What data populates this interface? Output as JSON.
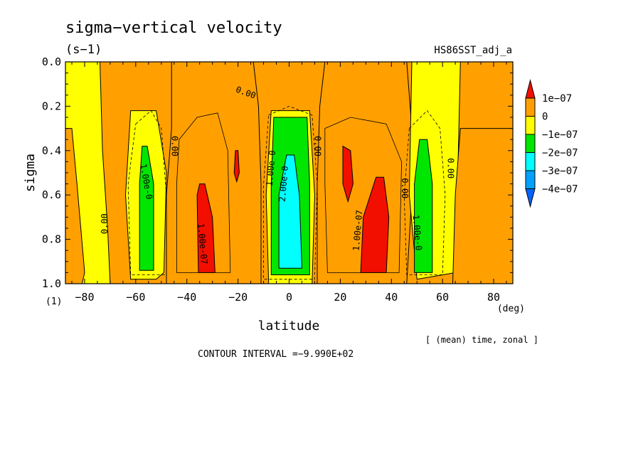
{
  "chart_data": {
    "type": "heatmap",
    "title": "sigma−vertical velocity",
    "units": "(s−1)",
    "dataset": "HS86SST_adj_a",
    "xlabel": "latitude",
    "x_units": "(deg)",
    "ylabel": "sigma",
    "y_units": "(1)",
    "xlim": [
      -87.5,
      87.5
    ],
    "ylim": [
      0.0,
      1.0
    ],
    "y_inverted": true,
    "x_ticks": [
      -80,
      -60,
      -40,
      -20,
      0,
      20,
      40,
      60,
      80
    ],
    "x_tick_labels": [
      "−80",
      "−60",
      "−40",
      "−20",
      "0",
      "20",
      "40",
      "60",
      "80"
    ],
    "y_ticks": [
      0.0,
      0.2,
      0.4,
      0.6,
      0.8,
      1.0
    ],
    "y_tick_labels": [
      "0.0",
      "0.2",
      "0.4",
      "0.6",
      "0.8",
      "1.0"
    ],
    "averaging_note": "[ (mean) time, zonal ]",
    "contour_interval_text": "CONTOUR INTERVAL =−9.990E+02",
    "colorbar": {
      "labels": [
        "1e−07",
        "0",
        "−1e−07",
        "−2e−07",
        "−3e−07",
        "−4e−07"
      ],
      "bins": [
        {
          "range": "> 1e-07",
          "color": "#f20f00"
        },
        {
          "range": "0 to 1e-07",
          "color": "#ffa000"
        },
        {
          "range": "-1e-07 to 0",
          "color": "#ffff00"
        },
        {
          "range": "-2e-07 to -1e-07",
          "color": "#00e600"
        },
        {
          "range": "-3e-07 to -2e-07",
          "color": "#00ffff"
        },
        {
          "range": "-4e-07 to -3e-07",
          "color": "#00a0ff"
        },
        {
          "range": "< -4e-07",
          "color": "#0064ff"
        }
      ]
    },
    "regions": [
      {
        "name": "sh-polar-descent",
        "level": "-1e-07 to 0",
        "color": "#ffff00",
        "polygon": [
          [
            -87.5,
            0.0
          ],
          [
            -74,
            0.0
          ],
          [
            -73,
            0.4
          ],
          [
            -71,
            0.75
          ],
          [
            -70,
            1.0
          ],
          [
            -87.5,
            1.0
          ]
        ]
      },
      {
        "name": "sh-polar-cap",
        "level": "0 to 1e-07",
        "color": "#ffa000",
        "polygon": [
          [
            -87.5,
            0.3
          ],
          [
            -85,
            0.3
          ],
          [
            -83,
            0.55
          ],
          [
            -80,
            0.95
          ],
          [
            -81,
            1.0
          ],
          [
            -87.5,
            1.0
          ]
        ]
      },
      {
        "name": "sh-midlat-ascent",
        "level": "0 to 1e-07",
        "color": "#ffa000",
        "polygon": [
          [
            -46,
            0.0
          ],
          [
            -14,
            0.0
          ],
          [
            -12,
            0.2
          ],
          [
            -11,
            0.55
          ],
          [
            -11,
            1.0
          ],
          [
            -48,
            1.0
          ],
          [
            -48,
            0.6
          ],
          [
            -46,
            0.3
          ]
        ]
      },
      {
        "name": "sh-subtropical-descent",
        "level": "-1e-07 to 0",
        "color": "#ffff00",
        "polygon": [
          [
            -62,
            0.22
          ],
          [
            -52,
            0.22
          ],
          [
            -48,
            0.5
          ],
          [
            -49,
            0.95
          ],
          [
            -52,
            0.98
          ],
          [
            -62,
            0.98
          ],
          [
            -64,
            0.6
          ]
        ]
      },
      {
        "name": "sh-descent-core",
        "level": "-2e-07 to -1e-07",
        "color": "#00e600",
        "polygon": [
          [
            -57.5,
            0.38
          ],
          [
            -55.5,
            0.38
          ],
          [
            -53,
            0.55
          ],
          [
            -53,
            0.94
          ],
          [
            -58.5,
            0.94
          ],
          [
            -58.5,
            0.55
          ]
        ]
      },
      {
        "name": "sh-ascent-core",
        "level": "> 1e-07",
        "color": "#f20f00",
        "polygon": [
          [
            -35,
            0.55
          ],
          [
            -33,
            0.55
          ],
          [
            -30,
            0.7
          ],
          [
            -29,
            0.95
          ],
          [
            -35.5,
            0.95
          ],
          [
            -36,
            0.6
          ]
        ]
      },
      {
        "name": "sh-upper-ascent",
        "level": "> 1e-07",
        "color": "#f20f00",
        "polygon": [
          [
            -21,
            0.4
          ],
          [
            -20,
            0.4
          ],
          [
            -19.5,
            0.5
          ],
          [
            -20.5,
            0.54
          ],
          [
            -21.5,
            0.5
          ]
        ]
      },
      {
        "name": "equatorial-descent",
        "level": "-1e-07 to 0",
        "color": "#ffff00",
        "polygon": [
          [
            -7,
            0.22
          ],
          [
            8,
            0.22
          ],
          [
            10,
            0.6
          ],
          [
            9,
            1.0
          ],
          [
            -8,
            1.0
          ],
          [
            -9,
            0.6
          ]
        ]
      },
      {
        "name": "equatorial-descent-mid",
        "level": "-2e-07 to -1e-07",
        "color": "#00e600",
        "polygon": [
          [
            -6,
            0.25
          ],
          [
            7,
            0.25
          ],
          [
            8,
            0.55
          ],
          [
            8,
            0.96
          ],
          [
            -7,
            0.96
          ],
          [
            -7,
            0.55
          ]
        ]
      },
      {
        "name": "equatorial-descent-core",
        "level": "-3e-07 to -2e-07",
        "color": "#00ffff",
        "polygon": [
          [
            -1,
            0.42
          ],
          [
            2,
            0.42
          ],
          [
            4,
            0.6
          ],
          [
            5,
            0.93
          ],
          [
            -4,
            0.93
          ],
          [
            -4,
            0.6
          ]
        ]
      },
      {
        "name": "nh-midlat-ascent",
        "level": "0 to 1e-07",
        "color": "#ffa000",
        "polygon": [
          [
            14,
            0.0
          ],
          [
            46,
            0.0
          ],
          [
            48,
            0.3
          ],
          [
            48,
            0.6
          ],
          [
            46,
            1.0
          ],
          [
            11,
            1.0
          ],
          [
            11,
            0.55
          ],
          [
            12,
            0.2
          ]
        ]
      },
      {
        "name": "nh-ascent-core",
        "level": "> 1e-07",
        "color": "#f20f00",
        "polygon": [
          [
            34,
            0.52
          ],
          [
            37,
            0.52
          ],
          [
            39,
            0.7
          ],
          [
            38,
            0.95
          ],
          [
            28,
            0.95
          ],
          [
            29,
            0.7
          ]
        ]
      },
      {
        "name": "nh-upper-ascent",
        "level": "> 1e-07",
        "color": "#f20f00",
        "polygon": [
          [
            21,
            0.38
          ],
          [
            24,
            0.4
          ],
          [
            25,
            0.55
          ],
          [
            23,
            0.63
          ],
          [
            21,
            0.55
          ]
        ]
      },
      {
        "name": "nh-subtropical-descent",
        "level": "-1e-07 to 0",
        "color": "#ffff00",
        "polygon": [
          [
            48,
            0.0
          ],
          [
            67,
            0.0
          ],
          [
            66,
            0.5
          ],
          [
            65,
            0.95
          ],
          [
            50,
            0.98
          ],
          [
            47,
            0.6
          ]
        ]
      },
      {
        "name": "nh-descent-core",
        "level": "-2e-07 to -1e-07",
        "color": "#00e600",
        "polygon": [
          [
            51,
            0.35
          ],
          [
            54,
            0.35
          ],
          [
            56,
            0.55
          ],
          [
            56,
            0.95
          ],
          [
            49,
            0.95
          ],
          [
            49,
            0.55
          ]
        ]
      },
      {
        "name": "nh-polar-ascent",
        "level": "0 to 1e-07",
        "color": "#ffa000",
        "polygon": [
          [
            67,
            0.3
          ],
          [
            87.5,
            0.3
          ],
          [
            87.5,
            1.0
          ],
          [
            64,
            1.0
          ],
          [
            65,
            0.6
          ]
        ]
      }
    ],
    "contour_labels": [
      {
        "text": "0.00",
        "x": -17,
        "y": 0.14,
        "angle": 20
      },
      {
        "text": "0.00",
        "x": -45,
        "y": 0.38,
        "angle": 90
      },
      {
        "text": "1.00e-0",
        "x": -56,
        "y": 0.54,
        "angle": 80
      },
      {
        "text": "0.00",
        "x": -72,
        "y": 0.73,
        "angle": -90
      },
      {
        "text": "1.00e-07",
        "x": -34,
        "y": 0.82,
        "angle": 85
      },
      {
        "text": "1.00e-0",
        "x": -7,
        "y": 0.48,
        "angle": -85
      },
      {
        "text": "2.00e-0",
        "x": -2,
        "y": 0.55,
        "angle": -85
      },
      {
        "text": "0.00",
        "x": 11,
        "y": 0.38,
        "angle": 90
      },
      {
        "text": "1.00e-07",
        "x": 27,
        "y": 0.76,
        "angle": -85
      },
      {
        "text": "0.00",
        "x": 45,
        "y": 0.57,
        "angle": 90
      },
      {
        "text": "1.00e-0",
        "x": 50,
        "y": 0.77,
        "angle": 85
      },
      {
        "text": "0.00",
        "x": 63,
        "y": 0.48,
        "angle": 90
      }
    ],
    "contour_lines": [
      {
        "style": "dashed",
        "points": [
          [
            -60,
            0.28
          ],
          [
            -54,
            0.22
          ],
          [
            -50,
            0.3
          ],
          [
            -48,
            0.6
          ],
          [
            -48,
            0.96
          ],
          [
            -62,
            0.96
          ],
          [
            -63,
            0.55
          ],
          [
            -60,
            0.28
          ]
        ]
      },
      {
        "style": "dashed",
        "points": [
          [
            -8,
            0.24
          ],
          [
            0,
            0.2
          ],
          [
            9,
            0.24
          ],
          [
            11,
            0.55
          ],
          [
            10,
            0.98
          ],
          [
            -10,
            0.98
          ],
          [
            -10,
            0.55
          ],
          [
            -8,
            0.24
          ]
        ]
      },
      {
        "style": "dashed",
        "points": [
          [
            47,
            0.3
          ],
          [
            54,
            0.22
          ],
          [
            59,
            0.3
          ],
          [
            61,
            0.6
          ],
          [
            60,
            0.96
          ],
          [
            46,
            0.96
          ],
          [
            45,
            0.6
          ],
          [
            47,
            0.3
          ]
        ]
      },
      {
        "style": "solid",
        "points": [
          [
            -43,
            0.35
          ],
          [
            -36,
            0.25
          ],
          [
            -28,
            0.23
          ],
          [
            -24,
            0.4
          ],
          [
            -23,
            0.95
          ],
          [
            -44,
            0.95
          ],
          [
            -44,
            0.55
          ],
          [
            -43,
            0.35
          ]
        ]
      },
      {
        "style": "solid",
        "points": [
          [
            14,
            0.3
          ],
          [
            24,
            0.25
          ],
          [
            38,
            0.28
          ],
          [
            44,
            0.45
          ],
          [
            43,
            0.95
          ],
          [
            15,
            0.95
          ],
          [
            14,
            0.55
          ],
          [
            14,
            0.3
          ]
        ]
      }
    ]
  }
}
